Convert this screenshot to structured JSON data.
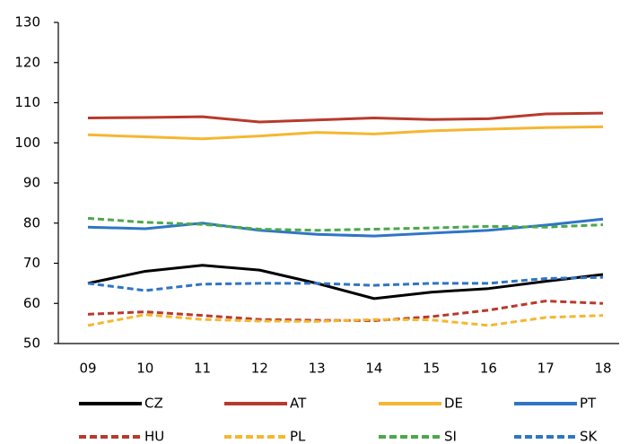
{
  "chart_data": {
    "type": "line",
    "categories": [
      "09",
      "10",
      "11",
      "12",
      "13",
      "14",
      "15",
      "16",
      "17",
      "18"
    ],
    "ylim": [
      50,
      130
    ],
    "yticks": [
      50,
      60,
      70,
      80,
      90,
      100,
      110,
      120,
      130
    ],
    "legend": "bottom",
    "series": [
      {
        "name": "CZ",
        "color": "#000000",
        "dashed": false,
        "values": [
          65,
          68,
          69.5,
          68.3,
          65,
          61.2,
          62.8,
          63.7,
          65.5,
          67.2
        ]
      },
      {
        "name": "AT",
        "color": "#b83a2c",
        "dashed": false,
        "values": [
          106.2,
          106.3,
          106.5,
          105.2,
          105.7,
          106.2,
          105.8,
          106,
          107.2,
          107.4
        ]
      },
      {
        "name": "DE",
        "color": "#f5b730",
        "dashed": false,
        "values": [
          102,
          101.5,
          101,
          101.7,
          102.6,
          102.2,
          103,
          103.4,
          103.8,
          104
        ]
      },
      {
        "name": "PT",
        "color": "#2e75c6",
        "dashed": false,
        "values": [
          79,
          78.6,
          80,
          78.2,
          77.2,
          76.8,
          77.5,
          78.2,
          79.5,
          81
        ]
      },
      {
        "name": "HU",
        "color": "#b83a2c",
        "dashed": true,
        "values": [
          57.3,
          57.9,
          57,
          56,
          55.8,
          55.7,
          56.7,
          58.3,
          60.6,
          60
        ]
      },
      {
        "name": "PL",
        "color": "#f5b730",
        "dashed": true,
        "values": [
          54.5,
          57.2,
          56,
          55.6,
          55.5,
          56,
          55.9,
          54.5,
          56.5,
          57
        ]
      },
      {
        "name": "SI",
        "color": "#4aa84a",
        "dashed": true,
        "values": [
          81.2,
          80.2,
          79.7,
          78.5,
          78.2,
          78.5,
          78.8,
          79.2,
          79,
          79.6
        ]
      },
      {
        "name": "SK",
        "color": "#2e75c6",
        "dashed": true,
        "values": [
          65,
          63.2,
          64.8,
          65,
          65,
          64.5,
          65,
          65,
          66.2,
          66.5
        ]
      }
    ]
  }
}
